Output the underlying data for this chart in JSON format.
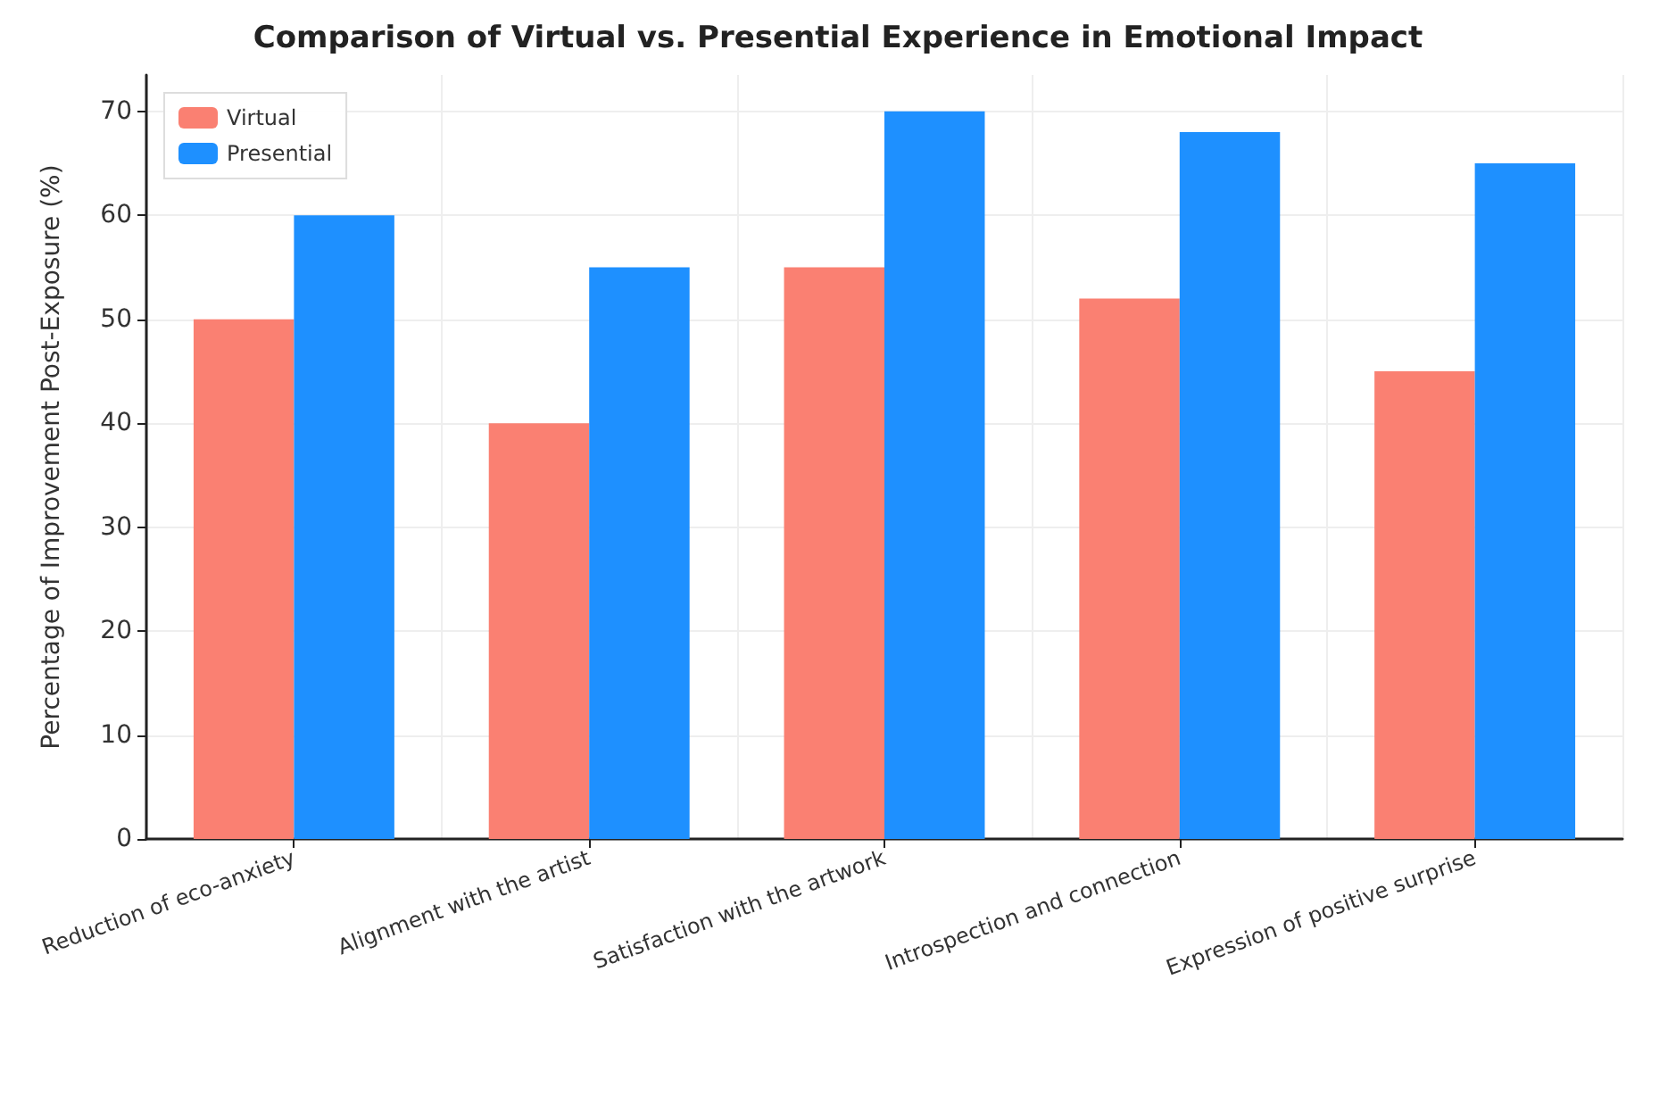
{
  "chart_data": {
    "type": "bar",
    "title": "Comparison of Virtual vs. Presential Experience in Emotional Impact",
    "ylabel": "Percentage of Improvement Post-Exposure (%)",
    "categories": [
      "Reduction of eco-anxiety",
      "Alignment with the artist",
      "Satisfaction with the artwork",
      "Introspection and connection",
      "Expression of positive surprise"
    ],
    "series": [
      {
        "name": "Virtual",
        "color": "#fa8072",
        "values": [
          50,
          40,
          55,
          52,
          45
        ]
      },
      {
        "name": "Presential",
        "color": "#1e90ff",
        "values": [
          60,
          55,
          70,
          68,
          65
        ]
      }
    ],
    "ylim": [
      0,
      73.5
    ],
    "yticks": [
      0,
      10,
      20,
      30,
      40,
      50,
      60,
      70
    ],
    "grid": true,
    "legend": "top left"
  }
}
